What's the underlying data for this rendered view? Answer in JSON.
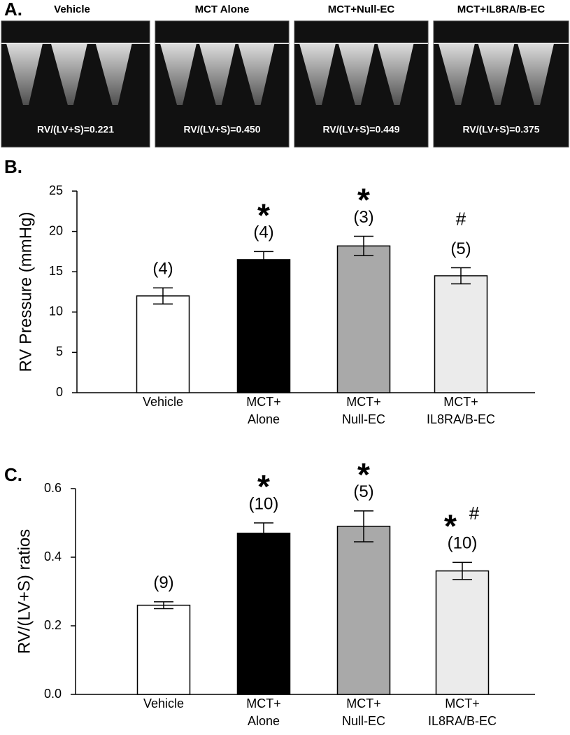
{
  "panel_a": {
    "label": "A.",
    "images": [
      {
        "title": "Vehicle",
        "caption": "RV/(LV+S)=0.221"
      },
      {
        "title": "MCT Alone",
        "caption": "RV/(LV+S)=0.450"
      },
      {
        "title": "MCT+Null-EC",
        "caption": "RV/(LV+S)=0.449"
      },
      {
        "title": "MCT+IL8RA/B-EC",
        "caption": "RV/(LV+S)=0.375"
      }
    ]
  },
  "chart_data": [
    {
      "type": "bar",
      "panel_label": "B.",
      "y_label": "RV Pressure (mmHg)",
      "categories": [
        [
          "Vehicle"
        ],
        [
          "MCT+",
          "Alone"
        ],
        [
          "MCT+",
          "Null-EC"
        ],
        [
          "MCT+",
          "IL8RA/B-EC"
        ]
      ],
      "values": [
        12,
        16.5,
        18.2,
        14.5
      ],
      "errors": [
        1,
        1,
        1.2,
        1
      ],
      "colors": [
        "#ffffff",
        "#000000",
        "#a9a9a9",
        "#ebebeb"
      ],
      "n_labels": [
        "(4)",
        "(4)",
        "(3)",
        "(5)"
      ],
      "symbols": [
        [],
        [
          "*"
        ],
        [
          "*"
        ],
        [
          "#"
        ]
      ],
      "ylim": [
        0,
        25
      ],
      "yticks": [
        0,
        5,
        10,
        15,
        20,
        25
      ]
    },
    {
      "type": "bar",
      "panel_label": "C.",
      "y_label": "RV/(LV+S) ratios",
      "categories": [
        [
          "Vehicle"
        ],
        [
          "MCT+",
          "Alone"
        ],
        [
          "MCT+",
          "Null-EC"
        ],
        [
          "MCT+",
          "IL8RA/B-EC"
        ]
      ],
      "values": [
        0.26,
        0.47,
        0.49,
        0.36
      ],
      "errors": [
        0.01,
        0.03,
        0.045,
        0.025
      ],
      "colors": [
        "#ffffff",
        "#000000",
        "#a9a9a9",
        "#ebebeb"
      ],
      "n_labels": [
        "(9)",
        "(10)",
        "(5)",
        "(10)"
      ],
      "symbols": [
        [],
        [
          "*"
        ],
        [
          "*"
        ],
        [
          "*",
          "#"
        ]
      ],
      "ylim": [
        0,
        0.6
      ],
      "yticks": [
        {
          "value": 0,
          "label": "0.0"
        },
        {
          "value": 0.2,
          "label": "0.2"
        },
        {
          "value": 0.4,
          "label": "0.4"
        },
        {
          "value": 0.6,
          "label": "0.6"
        }
      ]
    }
  ]
}
